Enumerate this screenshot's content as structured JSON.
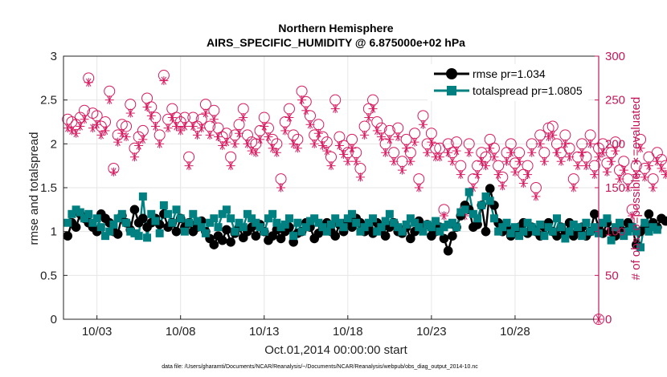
{
  "chart_data": {
    "type": "scatter",
    "title": "Northern Hemisphere",
    "subtitle": "AIRS_SPECIFIC_HUMIDITY @ 6.875000e+02 hPa",
    "xlabel": "Oct.01,2014 00:00:00 start",
    "ylabel": "rmse and totalspread",
    "ylabel_right": "# of obs: o=possible; ∗=evaluated",
    "footnote": "data file: /Users/gharamti/Documents/NCAR/Reanalysis/~/Documents/NCAR/Reanalysis/webpub/obs_diag_output_2014-10.nc",
    "xlim": [
      1,
      33
    ],
    "ylim": [
      0,
      3
    ],
    "ylim_right": [
      0,
      300
    ],
    "x_ticks": [
      3,
      8,
      13,
      18,
      23,
      28
    ],
    "x_tick_labels": [
      "10/03",
      "10/08",
      "10/13",
      "10/18",
      "10/23",
      "10/28"
    ],
    "y_tick_labels": [
      "0",
      "0.5",
      "1",
      "1.5",
      "2",
      "2.5",
      "3"
    ],
    "y_right_tick_labels": [
      "0",
      "50",
      "100",
      "150",
      "200",
      "250",
      "300"
    ],
    "colors": {
      "rmse": "#000000",
      "totalspread": "#008080",
      "obs": "#d81b60"
    },
    "legend": [
      "rmse pr=1.034",
      "totalspread pr=1.0805"
    ],
    "legend_position": "top-right",
    "x_start": 1.25,
    "x_step": 0.25,
    "series": [
      {
        "name": "rmse",
        "axis": "left",
        "marker": "circle",
        "values": [
          0.95,
          1.1,
          1.05,
          1.2,
          1.15,
          1.1,
          1.05,
          1.0,
          1.2,
          1.15,
          1.1,
          1.0,
          0.97,
          1.18,
          1.1,
          1.02,
          1.25,
          1.1,
          1.15,
          1.05,
          1.1,
          1.15,
          1.08,
          1.2,
          1.05,
          1.1,
          1.0,
          1.15,
          1.05,
          1.1,
          1.0,
          1.05,
          1.12,
          1.0,
          0.92,
          0.85,
          0.95,
          0.9,
          1.02,
          0.88,
          0.98,
          1.05,
          0.93,
          1.0,
          1.05,
          0.95,
          1.08,
          1.0,
          0.9,
          0.95,
          1.02,
          0.92,
          1.0,
          1.05,
          0.88,
          0.98,
          1.0,
          1.1,
          1.05,
          0.92,
          0.98,
          1.05,
          1.1,
          1.0,
          0.95,
          1.08,
          1.0,
          1.12,
          1.05,
          1.15,
          1.1,
          1.0,
          1.05,
          0.98,
          1.1,
          1.02,
          0.95,
          1.05,
          1.1,
          1.0,
          0.98,
          1.05,
          0.92,
          1.0,
          1.12,
          1.05,
          1.08,
          0.95,
          1.0,
          1.05,
          0.92,
          0.78,
          0.95,
          1.05,
          1.18,
          1.3,
          1.25,
          1.05,
          1.08,
          1.3,
          1.0,
          1.49,
          1.3,
          1.1,
          1.0,
          1.05,
          0.95,
          1.0,
          1.05,
          1.1,
          0.98,
          1.05,
          1.0,
          0.95,
          1.05,
          1.1,
          1.0,
          0.95,
          1.05,
          0.98,
          1.1,
          0.95,
          1.0,
          1.05,
          0.95,
          1.0,
          1.2,
          1.05,
          0.98,
          1.1,
          1.0,
          0.95,
          1.05,
          1.0,
          1.1,
          1.05,
          0.85,
          1.0,
          1.05,
          1.2,
          1.1,
          1.05,
          1.15,
          1.12
        ]
      },
      {
        "name": "totalspread",
        "axis": "left",
        "marker": "square",
        "values": [
          1.1,
          1.2,
          1.25,
          1.22,
          1.15,
          1.2,
          1.1,
          1.15,
          1.05,
          0.95,
          1.0,
          1.08,
          1.15,
          1.2,
          1.1,
          1.0,
          0.98,
          0.95,
          1.4,
          0.93,
          1.2,
          1.12,
          0.98,
          1.3,
          1.2,
          1.1,
          1.25,
          1.15,
          1.0,
          1.1,
          1.2,
          1.12,
          1.05,
          0.98,
          1.1,
          1.15,
          1.05,
          1.2,
          1.25,
          1.15,
          1.0,
          1.1,
          1.05,
          1.2,
          1.15,
          1.1,
          1.05,
          1.0,
          1.15,
          1.2,
          1.1,
          1.05,
          1.08,
          1.15,
          0.95,
          1.1,
          1.0,
          1.05,
          1.12,
          1.15,
          1.1,
          1.05,
          1.0,
          1.08,
          1.15,
          1.1,
          1.05,
          1.15,
          1.2,
          1.1,
          1.0,
          1.05,
          1.1,
          1.15,
          1.0,
          1.05,
          1.12,
          1.2,
          1.1,
          1.05,
          1.0,
          1.08,
          1.15,
          1.1,
          1.05,
          1.0,
          1.08,
          1.05,
          1.12,
          1.0,
          1.05,
          1.08,
          1.1,
          1.05,
          1.22,
          1.25,
          1.45,
          1.2,
          1.15,
          1.3,
          1.4,
          1.35,
          1.15,
          1.0,
          1.05,
          1.1,
          0.98,
          1.05,
          0.95,
          1.0,
          1.1,
          1.05,
          1.0,
          1.08,
          0.95,
          1.05,
          1.0,
          1.15,
          1.05,
          0.92,
          1.0,
          1.08,
          1.05,
          0.95,
          1.1,
          1.0,
          1.05,
          0.98,
          1.1,
          1.15,
          0.9,
          1.05,
          1.1,
          0.95,
          1.0,
          1.05,
          1.0,
          0.82,
          1.1,
          1.0,
          1.05,
          1.02
        ]
      },
      {
        "name": "obs possible",
        "axis": "right",
        "marker": "open-circle",
        "values": [
          228,
          225,
          222,
          230,
          238,
          275,
          235,
          232,
          220,
          225,
          260,
          172,
          210,
          222,
          220,
          245,
          195,
          208,
          215,
          252,
          242,
          230,
          210,
          278,
          228,
          240,
          230,
          225,
          230,
          185,
          230,
          220,
          228,
          245,
          220,
          238,
          218,
          208,
          212,
          185,
          210,
          222,
          240,
          210,
          202,
          200,
          215,
          230,
          218,
          205,
          200,
          160,
          225,
          240,
          210,
          205,
          260,
          248,
          232,
          210,
          222,
          208,
          202,
          185,
          250,
          208,
          198,
          190,
          205,
          190,
          172,
          220,
          240,
          250,
          225,
          218,
          200,
          215,
          190,
          218,
          180,
          205,
          190,
          212,
          160,
          232,
          200,
          212,
          195,
          195,
          125,
          200,
          190,
          202,
          175,
          125,
          200,
          160,
          175,
          190,
          185,
          205,
          195,
          175,
          162,
          190,
          200,
          178,
          190,
          165,
          175,
          200,
          150,
          210,
          190,
          218,
          220,
          200,
          190,
          210,
          195,
          160,
          185,
          200,
          185,
          210,
          175,
          195,
          200,
          178,
          190,
          202,
          170,
          180,
          160,
          125,
          175,
          205,
          172,
          185,
          160,
          190,
          182,
          175
        ]
      },
      {
        "name": "obs evaluated",
        "axis": "right",
        "marker": "asterisk",
        "values": [
          218,
          215,
          212,
          220,
          228,
          270,
          218,
          222,
          210,
          215,
          250,
          168,
          202,
          212,
          208,
          235,
          185,
          198,
          205,
          242,
          232,
          220,
          200,
          272,
          218,
          230,
          220,
          215,
          220,
          175,
          220,
          210,
          218,
          235,
          210,
          228,
          208,
          198,
          202,
          175,
          200,
          212,
          230,
          200,
          192,
          190,
          205,
          220,
          208,
          195,
          190,
          150,
          215,
          230,
          200,
          195,
          250,
          238,
          222,
          200,
          212,
          198,
          192,
          175,
          240,
          198,
          188,
          180,
          195,
          180,
          162,
          210,
          230,
          240,
          215,
          208,
          190,
          205,
          180,
          208,
          170,
          195,
          180,
          202,
          150,
          222,
          190,
          202,
          185,
          185,
          118,
          190,
          180,
          192,
          165,
          118,
          190,
          150,
          165,
          180,
          175,
          195,
          185,
          165,
          152,
          180,
          190,
          168,
          180,
          155,
          165,
          190,
          140,
          200,
          180,
          208,
          210,
          190,
          180,
          200,
          185,
          150,
          175,
          190,
          175,
          200,
          165,
          185,
          190,
          168,
          180,
          192,
          160,
          170,
          150,
          118,
          165,
          195,
          162,
          175,
          150,
          180,
          172,
          165
        ]
      }
    ]
  }
}
